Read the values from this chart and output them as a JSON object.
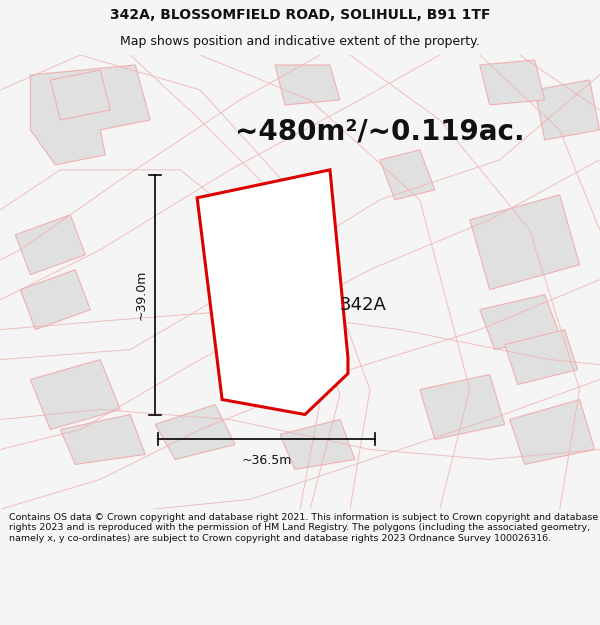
{
  "title_line1": "342A, BLOSSOMFIELD ROAD, SOLIHULL, B91 1TF",
  "title_line2": "Map shows position and indicative extent of the property.",
  "area_label": "~480m²/~0.119ac.",
  "property_label": "342A",
  "dim_width": "~36.5m",
  "dim_height": "~39.0m",
  "footer_text": "Contains OS data © Crown copyright and database right 2021. This information is subject to Crown copyright and database rights 2023 and is reproduced with the permission of HM Land Registry. The polygons (including the associated geometry, namely x, y co-ordinates) are subject to Crown copyright and database rights 2023 Ordnance Survey 100026316.",
  "bg_color": "#f5f5f5",
  "map_bg_color": "#ffffff",
  "property_line_color": "#dd0000",
  "neighbor_line_color": "#f0b0b0",
  "neighbor_fill_color": "#e0e0e0",
  "road_line_color": "#f0b0b0",
  "dim_line_color": "#000000",
  "text_color": "#111111",
  "title_fontsize": 10,
  "subtitle_fontsize": 9,
  "area_fontsize": 20,
  "label_fontsize": 13,
  "dim_fontsize": 9,
  "footer_fontsize": 6.8
}
